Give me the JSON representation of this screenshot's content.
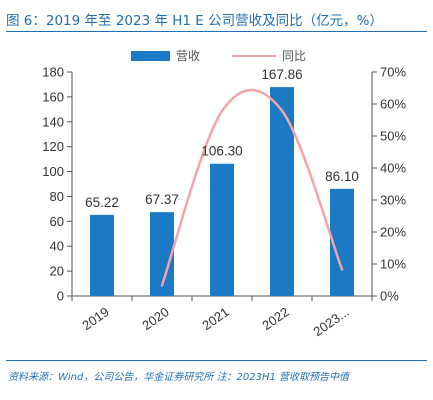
{
  "header": {
    "title": "图 6：2019 年至 2023 年 H1 E 公司营收及同比（亿元，%）"
  },
  "footer": {
    "source": "资料来源：Wind，公司公告，华金证券研究所  注：2023H1 营收取预告中值"
  },
  "colors": {
    "bar": "#1a7ac4",
    "line": "#f4a3a8",
    "axis": "#555555",
    "accent": "#1f6fb5"
  },
  "chart_data": {
    "type": "bar",
    "categories": [
      "2019",
      "2020",
      "2021",
      "2022",
      "2023..."
    ],
    "series": [
      {
        "name": "营收",
        "type": "bar",
        "axis": "left",
        "values": [
          65.22,
          67.37,
          106.3,
          167.86,
          86.1
        ],
        "labels": [
          "65.22",
          "67.37",
          "106.30",
          "167.86",
          "86.10"
        ]
      },
      {
        "name": "同比",
        "type": "line",
        "axis": "right",
        "values": [
          null,
          3.3,
          57.8,
          57.9,
          8.3
        ]
      }
    ],
    "yleft": {
      "lim": [
        0,
        180
      ],
      "ticks": [
        "0",
        "20",
        "40",
        "60",
        "80",
        "100",
        "120",
        "140",
        "160",
        "180"
      ]
    },
    "yright": {
      "lim": [
        0,
        70
      ],
      "ticks": [
        "0%",
        "10%",
        "20%",
        "30%",
        "40%",
        "50%",
        "60%",
        "70%"
      ]
    },
    "legend_position": "top-center",
    "grid": false
  }
}
